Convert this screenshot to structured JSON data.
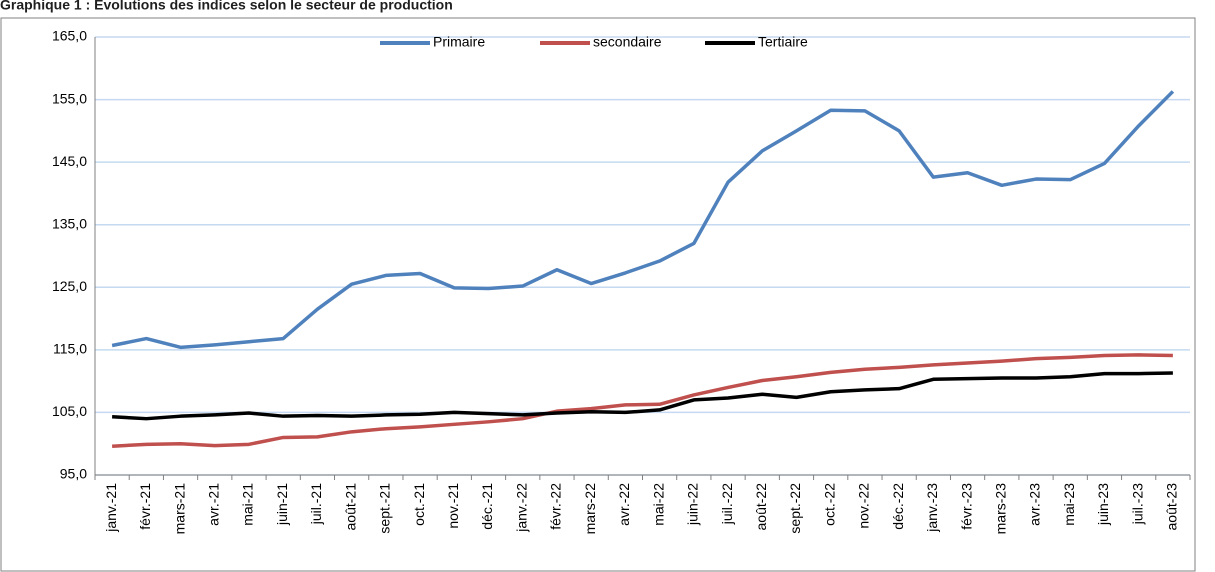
{
  "chart_data": {
    "type": "line",
    "title": "Graphique 1 : Evolutions des indices selon le secteur de production",
    "categories": [
      "janv.-21",
      "févr.-21",
      "mars-21",
      "avr.-21",
      "mai-21",
      "juin-21",
      "juil.-21",
      "août-21",
      "sept.-21",
      "oct.-21",
      "nov.-21",
      "déc.-21",
      "janv.-22",
      "févr.-22",
      "mars-22",
      "avr.-22",
      "mai-22",
      "juin-22",
      "juil.-22",
      "août-22",
      "sept.-22",
      "oct.-22",
      "nov.-22",
      "déc.-22",
      "janv.-23",
      "févr.-23",
      "mars-23",
      "avr.-23",
      "mai-23",
      "juin-23",
      "juil.-23",
      "août-23"
    ],
    "series": [
      {
        "name": "Primaire",
        "color": "#4f81bd",
        "values": [
          115.7,
          116.8,
          115.4,
          115.8,
          116.3,
          116.8,
          121.5,
          125.5,
          126.9,
          127.2,
          124.9,
          124.8,
          125.2,
          127.8,
          125.6,
          127.3,
          129.2,
          132.0,
          141.8,
          146.8,
          150.0,
          153.3,
          153.2,
          150.0,
          142.6,
          143.3,
          141.3,
          142.3,
          142.2,
          144.8,
          150.8,
          156.3
        ]
      },
      {
        "name": "secondaire",
        "color": "#c0504d",
        "values": [
          99.6,
          99.9,
          100.0,
          99.7,
          99.9,
          101.0,
          101.1,
          101.9,
          102.4,
          102.7,
          103.1,
          103.5,
          104.0,
          105.2,
          105.6,
          106.2,
          106.3,
          107.8,
          109.0,
          110.1,
          110.7,
          111.4,
          111.9,
          112.2,
          112.6,
          112.9,
          113.2,
          113.6,
          113.8,
          114.1,
          114.2,
          114.1
        ]
      },
      {
        "name": "Tertiaire",
        "color": "#000000",
        "values": [
          104.3,
          104.0,
          104.4,
          104.6,
          104.9,
          104.4,
          104.5,
          104.4,
          104.6,
          104.7,
          105.0,
          104.8,
          104.6,
          104.9,
          105.1,
          105.0,
          105.4,
          107.0,
          107.3,
          107.9,
          107.4,
          108.3,
          108.6,
          108.8,
          110.3,
          110.4,
          110.5,
          110.5,
          110.7,
          111.2,
          111.2,
          111.3
        ]
      }
    ],
    "ylim": [
      95,
      165
    ],
    "yticks": [
      {
        "value": 95,
        "label": "95,0"
      },
      {
        "value": 105,
        "label": "105,0"
      },
      {
        "value": 115,
        "label": "115,0"
      },
      {
        "value": 125,
        "label": "125,0"
      },
      {
        "value": 135,
        "label": "135,0"
      },
      {
        "value": 145,
        "label": "145,0"
      },
      {
        "value": 155,
        "label": "155,0"
      },
      {
        "value": 165,
        "label": "165,0"
      }
    ],
    "grid": true,
    "legend": "top"
  }
}
